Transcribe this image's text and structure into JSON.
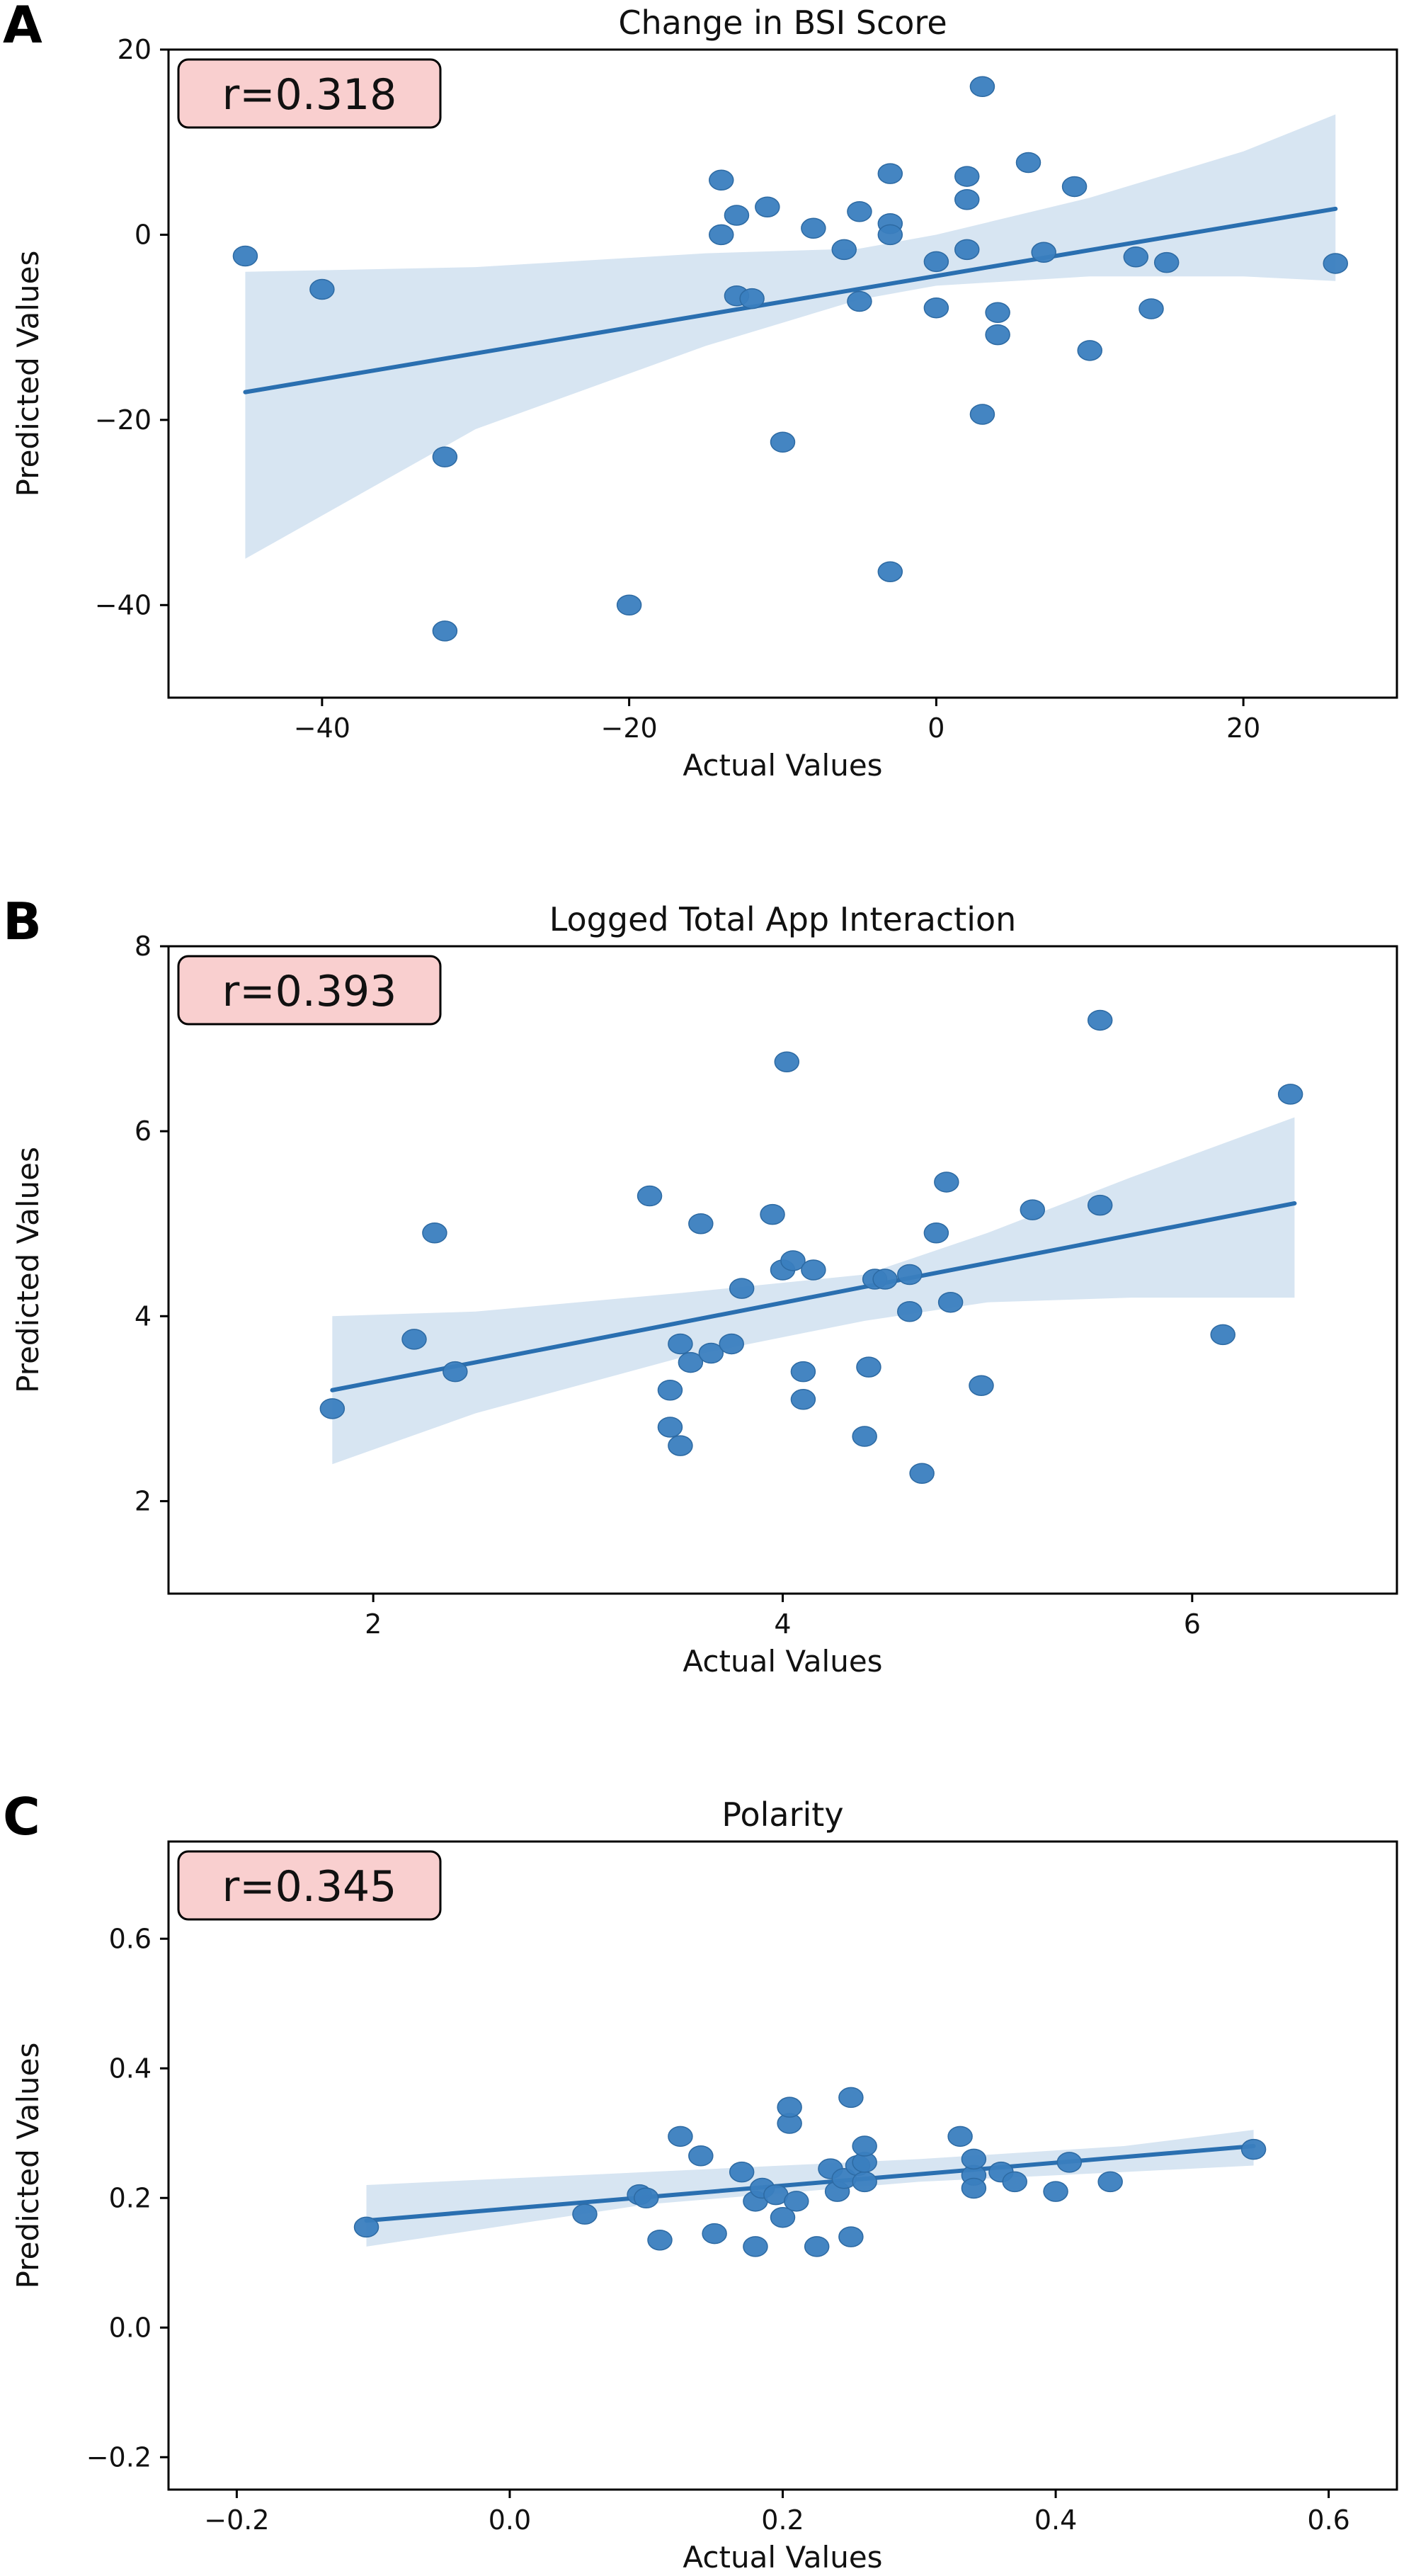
{
  "chart_data": [
    {
      "panel": "A",
      "type": "scatter",
      "title": "Change in BSI Score",
      "xlabel": "Actual Values",
      "ylabel": "Predicted Values",
      "annotation": "r=0.318",
      "xlim": [
        -50,
        30
      ],
      "ylim": [
        -50,
        20
      ],
      "xticks": [
        -40,
        -20,
        0,
        20
      ],
      "xtick_labels": [
        "−40",
        "−20",
        "0",
        "20"
      ],
      "yticks": [
        -40,
        -20,
        0,
        20
      ],
      "ytick_labels": [
        "−40",
        "−20",
        "0",
        "20"
      ],
      "points": [
        [
          -45,
          -2.3
        ],
        [
          -40,
          -5.9
        ],
        [
          -32,
          -24
        ],
        [
          -32,
          -42.8
        ],
        [
          -20,
          -40
        ],
        [
          -14,
          5.9
        ],
        [
          -14,
          0
        ],
        [
          -13,
          2.1
        ],
        [
          -13,
          -6.6
        ],
        [
          -12,
          -6.9
        ],
        [
          -11,
          3
        ],
        [
          -10,
          -22.4
        ],
        [
          -8,
          0.7
        ],
        [
          -6,
          -1.6
        ],
        [
          -5,
          2.5
        ],
        [
          -5,
          -7.2
        ],
        [
          -3,
          6.6
        ],
        [
          -3,
          1.2
        ],
        [
          -3,
          0
        ],
        [
          -3,
          -36.4
        ],
        [
          0,
          -2.9
        ],
        [
          0,
          -7.9
        ],
        [
          2,
          6.3
        ],
        [
          2,
          3.8
        ],
        [
          2,
          -1.6
        ],
        [
          3,
          16
        ],
        [
          3,
          -19.4
        ],
        [
          4,
          -8.4
        ],
        [
          4,
          -10.8
        ],
        [
          6,
          7.8
        ],
        [
          7,
          -1.9
        ],
        [
          9,
          5.2
        ],
        [
          10,
          -12.5
        ],
        [
          13,
          -2.4
        ],
        [
          14,
          -8
        ],
        [
          15,
          -3
        ],
        [
          26,
          -3.1
        ]
      ],
      "fit": {
        "x0": -45,
        "y0": -17,
        "x1": 26,
        "y1": 2.8
      },
      "band_upper": [
        [
          -45,
          -4
        ],
        [
          -30,
          -3.5
        ],
        [
          -15,
          -2
        ],
        [
          -5,
          -1.5
        ],
        [
          0,
          0
        ],
        [
          10,
          4
        ],
        [
          20,
          9
        ],
        [
          26,
          13
        ]
      ],
      "band_lower": [
        [
          -45,
          -35
        ],
        [
          -30,
          -21
        ],
        [
          -15,
          -12
        ],
        [
          -5,
          -7
        ],
        [
          0,
          -5.5
        ],
        [
          10,
          -4.5
        ],
        [
          20,
          -4.5
        ],
        [
          26,
          -5
        ]
      ],
      "colors": {
        "point": "#3a7ebf",
        "line": "#2a6fb0",
        "band": "#d7e5f2",
        "annotation_bg": "#f9cfcf"
      }
    },
    {
      "panel": "B",
      "type": "scatter",
      "title": "Logged Total App Interaction",
      "xlabel": "Actual Values",
      "ylabel": "Predicted Values",
      "annotation": "r=0.393",
      "xlim": [
        1,
        7
      ],
      "ylim": [
        1,
        8
      ],
      "xticks": [
        2,
        4,
        6
      ],
      "xtick_labels": [
        "2",
        "4",
        "6"
      ],
      "yticks": [
        2,
        4,
        6,
        8
      ],
      "ytick_labels": [
        "2",
        "4",
        "6",
        "8"
      ],
      "points": [
        [
          1.8,
          3
        ],
        [
          2.2,
          3.75
        ],
        [
          2.3,
          4.9
        ],
        [
          2.4,
          3.4
        ],
        [
          3.35,
          5.3
        ],
        [
          3.45,
          3.2
        ],
        [
          3.45,
          2.8
        ],
        [
          3.5,
          2.6
        ],
        [
          3.5,
          3.7
        ],
        [
          3.55,
          3.5
        ],
        [
          3.6,
          5
        ],
        [
          3.65,
          3.6
        ],
        [
          3.75,
          3.7
        ],
        [
          3.8,
          4.3
        ],
        [
          3.95,
          5.1
        ],
        [
          4,
          4.5
        ],
        [
          4.02,
          6.75
        ],
        [
          4.05,
          4.6
        ],
        [
          4.1,
          3.1
        ],
        [
          4.1,
          3.4
        ],
        [
          4.15,
          4.5
        ],
        [
          4.4,
          2.7
        ],
        [
          4.42,
          3.45
        ],
        [
          4.45,
          4.4
        ],
        [
          4.5,
          4.4
        ],
        [
          4.62,
          4.05
        ],
        [
          4.62,
          4.45
        ],
        [
          4.68,
          2.3
        ],
        [
          4.75,
          4.9
        ],
        [
          4.8,
          5.45
        ],
        [
          4.82,
          4.15
        ],
        [
          4.97,
          3.25
        ],
        [
          5.22,
          5.15
        ],
        [
          5.55,
          7.2
        ],
        [
          5.55,
          5.2
        ],
        [
          6.15,
          3.8
        ],
        [
          6.48,
          6.4
        ]
      ],
      "fit": {
        "x0": 1.8,
        "y0": 3.2,
        "x1": 6.5,
        "y1": 5.22
      },
      "band_upper": [
        [
          1.8,
          4
        ],
        [
          2.5,
          4.05
        ],
        [
          3.5,
          4.25
        ],
        [
          4.4,
          4.45
        ],
        [
          5,
          4.9
        ],
        [
          5.7,
          5.5
        ],
        [
          6.5,
          6.15
        ]
      ],
      "band_lower": [
        [
          1.8,
          2.4
        ],
        [
          2.5,
          2.95
        ],
        [
          3.5,
          3.55
        ],
        [
          4.4,
          3.95
        ],
        [
          5,
          4.15
        ],
        [
          5.7,
          4.2
        ],
        [
          6.5,
          4.2
        ]
      ],
      "colors": {
        "point": "#3a7ebf",
        "line": "#2a6fb0",
        "band": "#d7e5f2",
        "annotation_bg": "#f9cfcf"
      }
    },
    {
      "panel": "C",
      "type": "scatter",
      "title": "Polarity",
      "xlabel": "Actual Values",
      "ylabel": "Predicted Values",
      "annotation": "r=0.345",
      "xlim": [
        -0.25,
        0.65
      ],
      "ylim": [
        -0.25,
        0.75
      ],
      "xticks": [
        -0.2,
        0.0,
        0.2,
        0.4,
        0.6
      ],
      "xtick_labels": [
        "−0.2",
        "0.0",
        "0.2",
        "0.4",
        "0.6"
      ],
      "yticks": [
        -0.2,
        0.0,
        0.2,
        0.4,
        0.6
      ],
      "ytick_labels": [
        "−0.2",
        "0.0",
        "0.2",
        "0.4",
        "0.6"
      ],
      "points": [
        [
          -0.105,
          0.155
        ],
        [
          0.055,
          0.175
        ],
        [
          0.095,
          0.205
        ],
        [
          0.1,
          0.2
        ],
        [
          0.11,
          0.135
        ],
        [
          0.125,
          0.295
        ],
        [
          0.14,
          0.265
        ],
        [
          0.15,
          0.145
        ],
        [
          0.17,
          0.24
        ],
        [
          0.18,
          0.195
        ],
        [
          0.18,
          0.125
        ],
        [
          0.185,
          0.215
        ],
        [
          0.195,
          0.205
        ],
        [
          0.2,
          0.17
        ],
        [
          0.205,
          0.315
        ],
        [
          0.205,
          0.34
        ],
        [
          0.21,
          0.195
        ],
        [
          0.225,
          0.125
        ],
        [
          0.235,
          0.245
        ],
        [
          0.24,
          0.21
        ],
        [
          0.245,
          0.23
        ],
        [
          0.25,
          0.14
        ],
        [
          0.25,
          0.355
        ],
        [
          0.255,
          0.25
        ],
        [
          0.26,
          0.225
        ],
        [
          0.26,
          0.255
        ],
        [
          0.26,
          0.28
        ],
        [
          0.33,
          0.295
        ],
        [
          0.34,
          0.235
        ],
        [
          0.34,
          0.215
        ],
        [
          0.34,
          0.26
        ],
        [
          0.36,
          0.24
        ],
        [
          0.37,
          0.225
        ],
        [
          0.4,
          0.21
        ],
        [
          0.41,
          0.255
        ],
        [
          0.44,
          0.225
        ],
        [
          0.545,
          0.275
        ]
      ],
      "fit": {
        "x0": -0.105,
        "y0": 0.165,
        "x1": 0.545,
        "y1": 0.28
      },
      "band_upper": [
        [
          -0.105,
          0.22
        ],
        [
          0.1,
          0.24
        ],
        [
          0.3,
          0.26
        ],
        [
          0.45,
          0.28
        ],
        [
          0.545,
          0.305
        ]
      ],
      "band_lower": [
        [
          -0.105,
          0.125
        ],
        [
          0.1,
          0.19
        ],
        [
          0.3,
          0.225
        ],
        [
          0.45,
          0.24
        ],
        [
          0.545,
          0.25
        ]
      ],
      "colors": {
        "point": "#3a7ebf",
        "line": "#2a6fb0",
        "band": "#d7e5f2",
        "annotation_bg": "#f9cfcf"
      }
    }
  ]
}
